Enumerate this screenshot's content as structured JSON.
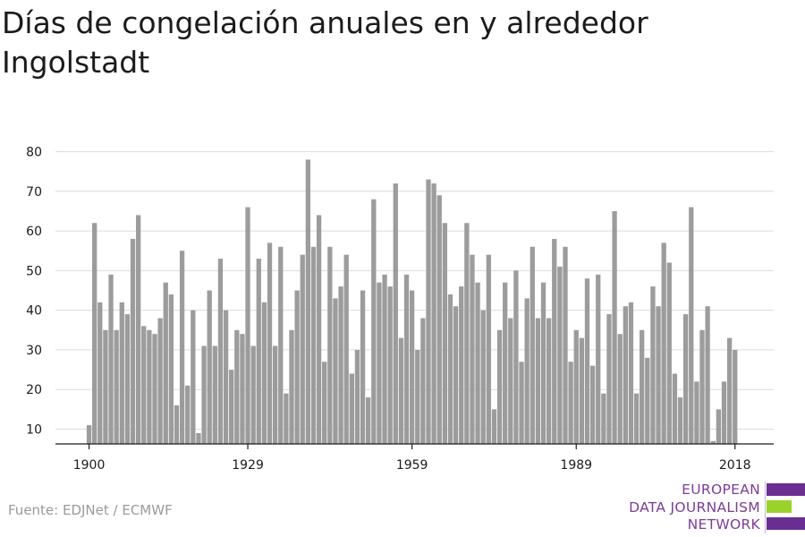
{
  "title": "Días de congelación anuales en y alrededor Ingolstadt",
  "source": "Fuente: EDJNet / ECMWF",
  "logo": {
    "lines": [
      "EUROPEAN",
      "DATA JOURNALISM",
      "NETWORK"
    ],
    "colors": {
      "text": "#7d3c98",
      "purple": "#6a2d91",
      "green": "#9ad22c"
    }
  },
  "colors": {
    "bar": "#9c9c9c",
    "grid": "#dcdcdc",
    "axis": "#1b1b1b",
    "tick_label": "#1b1b1b"
  },
  "chart_data": {
    "type": "bar",
    "title": "Días de congelación anuales en y alrededor Ingolstadt",
    "xlabel": "",
    "ylabel": "",
    "ylim": [
      6,
      80
    ],
    "yticks": [
      10,
      20,
      30,
      40,
      50,
      60,
      70,
      80
    ],
    "xticks": [
      "1900",
      "1929",
      "1959",
      "1989",
      "2018"
    ],
    "grid": true,
    "x": [
      1900,
      1901,
      1902,
      1903,
      1904,
      1905,
      1906,
      1907,
      1908,
      1909,
      1910,
      1911,
      1912,
      1913,
      1914,
      1915,
      1916,
      1917,
      1918,
      1919,
      1920,
      1921,
      1922,
      1923,
      1924,
      1925,
      1926,
      1927,
      1928,
      1929,
      1930,
      1931,
      1932,
      1933,
      1934,
      1935,
      1936,
      1937,
      1938,
      1939,
      1940,
      1941,
      1942,
      1943,
      1944,
      1945,
      1946,
      1947,
      1948,
      1949,
      1950,
      1951,
      1952,
      1953,
      1954,
      1955,
      1956,
      1957,
      1958,
      1959,
      1960,
      1961,
      1962,
      1963,
      1964,
      1965,
      1966,
      1967,
      1968,
      1969,
      1970,
      1971,
      1972,
      1973,
      1974,
      1975,
      1976,
      1977,
      1978,
      1979,
      1980,
      1981,
      1982,
      1983,
      1984,
      1985,
      1986,
      1987,
      1988,
      1989,
      1990,
      1991,
      1992,
      1993,
      1994,
      1995,
      1996,
      1997,
      1998,
      1999,
      2000,
      2001,
      2002,
      2003,
      2004,
      2005,
      2006,
      2007,
      2008,
      2009,
      2010,
      2011,
      2012,
      2013,
      2014,
      2015,
      2016,
      2017,
      2018
    ],
    "values": [
      11,
      62,
      42,
      35,
      49,
      35,
      42,
      39,
      58,
      64,
      36,
      35,
      34,
      38,
      47,
      44,
      16,
      55,
      21,
      40,
      9,
      31,
      45,
      31,
      53,
      40,
      25,
      35,
      34,
      66,
      31,
      53,
      42,
      57,
      31,
      56,
      19,
      35,
      45,
      54,
      78,
      56,
      64,
      27,
      56,
      43,
      46,
      54,
      24,
      30,
      45,
      18,
      68,
      47,
      49,
      46,
      72,
      33,
      49,
      45,
      30,
      38,
      73,
      72,
      69,
      62,
      44,
      41,
      46,
      62,
      54,
      47,
      40,
      54,
      15,
      35,
      47,
      38,
      50,
      27,
      43,
      56,
      38,
      47,
      38,
      58,
      51,
      56,
      27,
      35,
      33,
      48,
      26,
      49,
      19,
      39,
      65,
      34,
      41,
      42,
      19,
      35,
      28,
      46,
      41,
      57,
      52,
      24,
      18,
      39,
      66,
      22,
      35,
      41,
      7,
      15,
      22,
      33,
      30
    ]
  }
}
